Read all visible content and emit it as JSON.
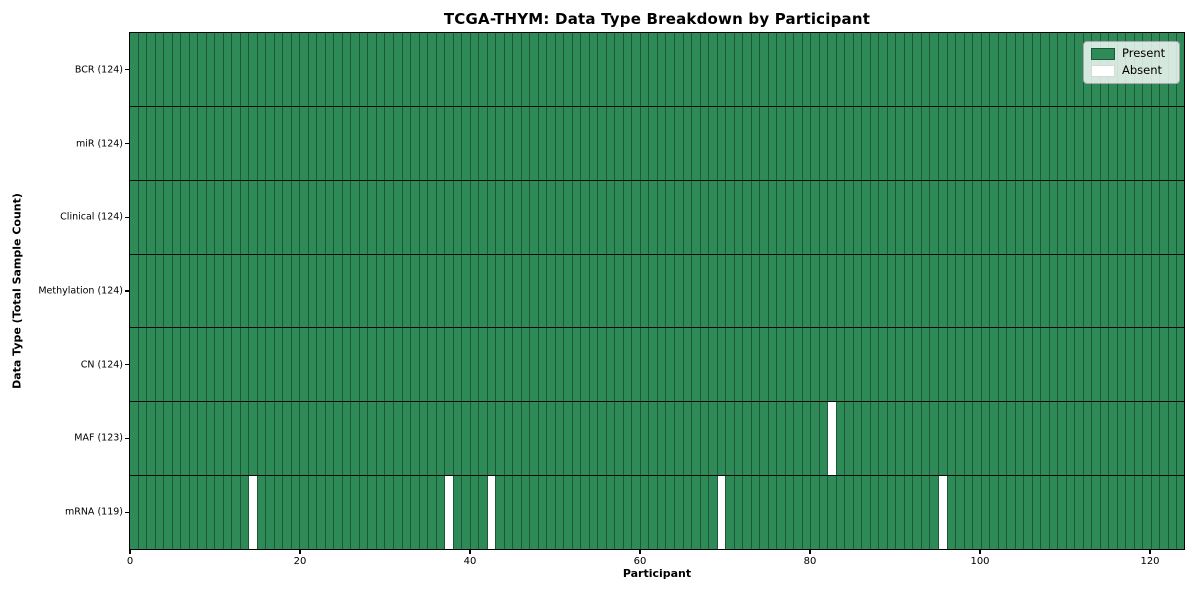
{
  "title": "TCGA-THYM: Data Type Breakdown by Participant",
  "colors": {
    "present": "#2E8B57",
    "absent": "#FFFFFF",
    "cell_edge": "#1D5737",
    "row_divider": "#0A0A0A",
    "spine": "#000000"
  },
  "legend": {
    "items": [
      {
        "label": "Present",
        "color": "#2E8B57"
      },
      {
        "label": "Absent",
        "color": "#FFFFFF"
      }
    ],
    "position": "upper-right"
  },
  "chart_data": {
    "type": "heatmap",
    "title": "TCGA-THYM: Data Type Breakdown by Participant",
    "xlabel": "Participant",
    "ylabel": "Data Type (Total Sample Count)",
    "x_range": [
      0,
      124
    ],
    "x_ticks": [
      0,
      20,
      40,
      60,
      80,
      100,
      120
    ],
    "n_participants": 124,
    "grid": "row-dividers-and-cell-edges",
    "legend_position": "upper-right",
    "legend": [
      {
        "label": "Present",
        "color": "#2E8B57"
      },
      {
        "label": "Absent",
        "color": "#FFFFFF"
      }
    ],
    "rows": [
      {
        "label": "BCR (124)",
        "data_type": "BCR",
        "total": 124,
        "absent_participants": []
      },
      {
        "label": "miR (124)",
        "data_type": "miR",
        "total": 124,
        "absent_participants": []
      },
      {
        "label": "Clinical (124)",
        "data_type": "Clinical",
        "total": 124,
        "absent_participants": []
      },
      {
        "label": "Methylation (124)",
        "data_type": "Methylation",
        "total": 124,
        "absent_participants": []
      },
      {
        "label": "CN (124)",
        "data_type": "CN",
        "total": 124,
        "absent_participants": []
      },
      {
        "label": "MAF (123)",
        "data_type": "MAF",
        "total": 123,
        "absent_participants": [
          82
        ]
      },
      {
        "label": "mRNA (119)",
        "data_type": "mRNA",
        "total": 119,
        "absent_participants": [
          14,
          37,
          42,
          69,
          95
        ]
      }
    ]
  }
}
